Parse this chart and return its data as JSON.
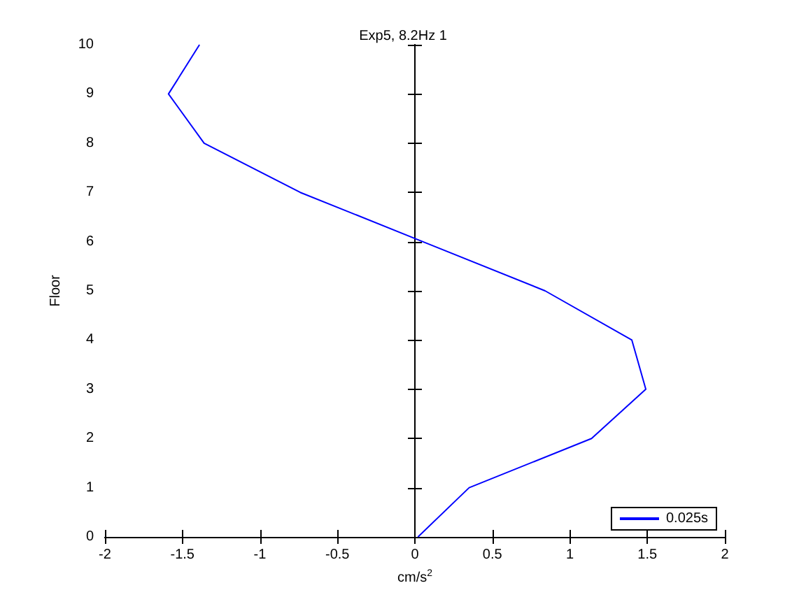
{
  "chart_data": {
    "type": "line",
    "title": "Exp5, 8.2Hz 1",
    "xlabel": "cm/s$^{2}$",
    "ylabel": "Floor",
    "series": [
      {
        "name": "0.025s",
        "color": "#0000ff",
        "x": [
          0.02,
          0.35,
          1.14,
          1.49,
          1.4,
          0.84,
          0.05,
          -0.74,
          -1.36,
          -1.59,
          -1.39
        ],
        "values": [
          0,
          1,
          2,
          3,
          4,
          5,
          6,
          7,
          8,
          9,
          10
        ]
      }
    ],
    "xlim": [
      -2,
      2
    ],
    "xticks": [
      -2,
      -1.5,
      -1,
      -0.5,
      0,
      0.5,
      1,
      1.5,
      2
    ],
    "ylim": [
      0,
      10
    ],
    "yticks": [
      0,
      1,
      2,
      3,
      4,
      5,
      6,
      7,
      8,
      9,
      10
    ],
    "legend": "bottom right",
    "marker": "none",
    "line_style": "solid"
  }
}
